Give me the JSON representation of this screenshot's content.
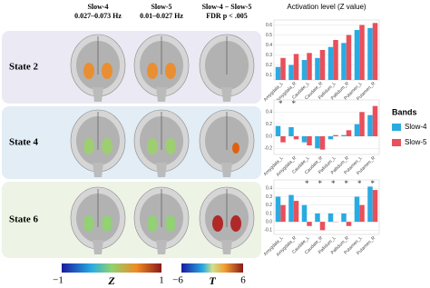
{
  "figure": {
    "columns": [
      {
        "name": "Slow-4",
        "sub": "0.027–0.073 Hz"
      },
      {
        "name": "Slow-5",
        "sub": "0.01–0.027 Hz"
      },
      {
        "name": "Slow-4 − Slow-5",
        "sub": "FDR p < .005"
      }
    ],
    "rows": [
      "State 2",
      "State 4",
      "State 6"
    ],
    "colorbars": [
      {
        "label": "Z",
        "min": {
          "value": -1,
          "label": "−1"
        },
        "max": 1
      },
      {
        "label": "T",
        "min": {
          "value": -6,
          "label": "−6"
        },
        "max": 6
      }
    ]
  },
  "chart_data": [
    {
      "type": "bar",
      "title": "Activation level (Z value)",
      "legend_title": "Bands",
      "categories": [
        "Amygdala_L",
        "Amygdala_R",
        "Caudate_L",
        "Caudate_R",
        "Pallidum_L",
        "Pallidum_R",
        "Putamen_L",
        "Putamen_R"
      ],
      "series": [
        {
          "name": "Slow-4",
          "color": "#29abe2",
          "values": [
            0.18,
            0.2,
            0.25,
            0.27,
            0.38,
            0.42,
            0.55,
            0.57
          ]
        },
        {
          "name": "Slow-5",
          "color": "#e8505b",
          "values": [
            0.27,
            0.31,
            0.32,
            0.35,
            0.45,
            0.5,
            0.6,
            0.62
          ]
        }
      ],
      "ylim": [
        0.05,
        0.65
      ],
      "yticks": [
        0.1,
        0.2,
        0.3,
        0.4,
        0.5,
        0.6
      ],
      "grid": true,
      "annotations": []
    },
    {
      "type": "bar",
      "categories": [
        "Amygdala_L",
        "Amygdala_R",
        "Caudate_L",
        "Caudate_R",
        "Pallidum_L",
        "Pallidum_R",
        "Putamen_L",
        "Putamen_R"
      ],
      "series": [
        {
          "name": "Slow-4",
          "color": "#29abe2",
          "values": [
            0.17,
            0.15,
            -0.1,
            -0.2,
            -0.05,
            0.02,
            0.2,
            0.35
          ]
        },
        {
          "name": "Slow-5",
          "color": "#e8505b",
          "values": [
            -0.1,
            -0.05,
            -0.15,
            -0.22,
            0.02,
            0.1,
            0.4,
            0.5
          ]
        }
      ],
      "ylim": [
        -0.3,
        0.6
      ],
      "yticks": [
        -0.2,
        {
          "value": 0,
          "label": "0.0"
        },
        0.2,
        0.4
      ],
      "grid": true,
      "annotations": [
        {
          "text": "*",
          "category": "Amygdala_L"
        },
        {
          "text": "*",
          "category": "Amygdala_R"
        }
      ]
    },
    {
      "type": "bar",
      "categories": [
        "Amygdala_L",
        "Amygdala_R",
        "Caudate_L",
        "Caudate_R",
        "Pallidum_L",
        "Pallidum_R",
        "Putamen_L",
        "Putamen_R"
      ],
      "series": [
        {
          "name": "Slow-4",
          "color": "#29abe2",
          "values": [
            0.3,
            0.32,
            0.2,
            0.1,
            0.1,
            0.1,
            0.3,
            0.42
          ]
        },
        {
          "name": "Slow-5",
          "color": "#e8505b",
          "values": [
            0.2,
            0.25,
            -0.05,
            -0.1,
            0.0,
            -0.05,
            0.2,
            0.38
          ]
        }
      ],
      "ylim": [
        -0.15,
        0.5
      ],
      "yticks": [
        -0.1,
        {
          "value": 0,
          "label": "0.0"
        },
        0.1,
        0.2,
        0.3,
        0.4
      ],
      "grid": true,
      "annotations": [
        {
          "text": "*",
          "category": "Caudate_L"
        },
        {
          "text": "*",
          "category": "Caudate_R"
        },
        {
          "text": "*",
          "category": "Pallidum_L"
        },
        {
          "text": "*",
          "category": "Pallidum_R"
        },
        {
          "text": "*",
          "category": "Putamen_L"
        },
        {
          "text": "*",
          "category": "Putamen_R"
        }
      ]
    }
  ]
}
